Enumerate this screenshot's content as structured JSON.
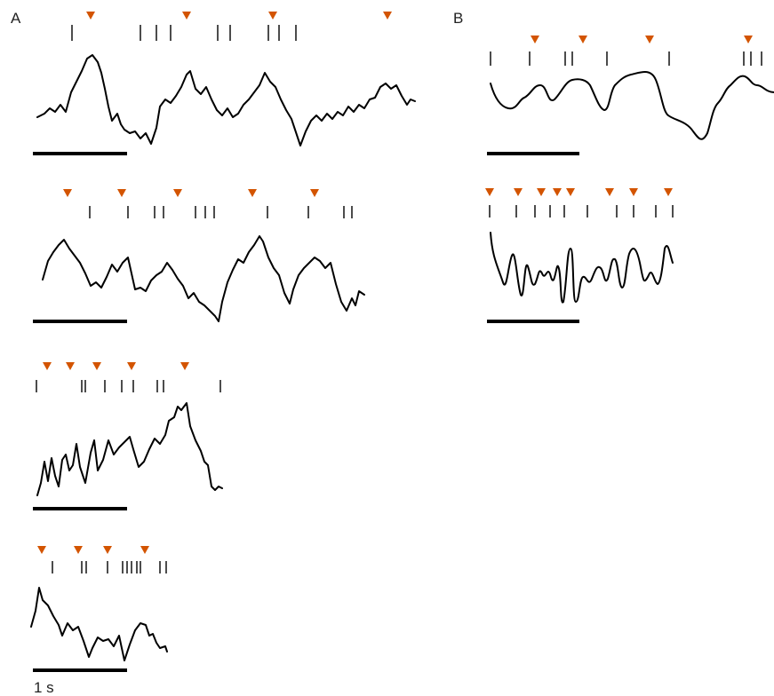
{
  "panels": [
    {
      "label": "A"
    },
    {
      "label": "B"
    }
  ],
  "scale_bar": {
    "label": "1 s"
  }
}
